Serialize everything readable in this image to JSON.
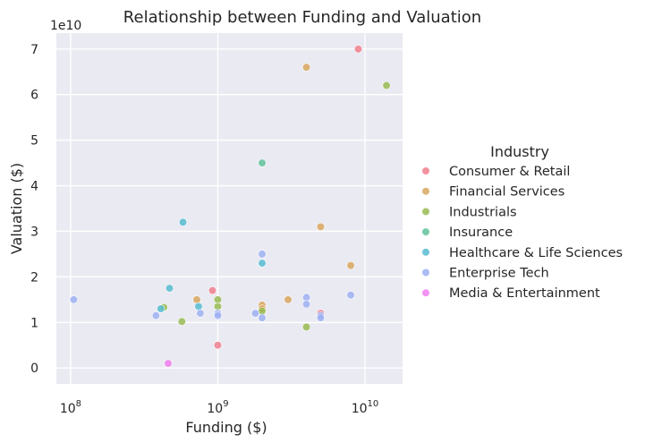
{
  "chart_data": {
    "type": "scatter",
    "title": "Relationship between Funding and Valuation",
    "xlabel": "Funding ($)",
    "ylabel": "Valuation ($)",
    "x_scale": "log",
    "xlim": [
      80000000,
      18000000000
    ],
    "ylim": [
      -3500000000,
      73500000000
    ],
    "y_offset_label": "1e10",
    "x_ticks": [
      {
        "value": 100000000,
        "base": "10",
        "exp": "8"
      },
      {
        "value": 1000000000,
        "base": "10",
        "exp": "9"
      },
      {
        "value": 10000000000,
        "base": "10",
        "exp": "10"
      }
    ],
    "y_ticks": [
      {
        "value": 0,
        "label": "0"
      },
      {
        "value": 10000000000,
        "label": "1"
      },
      {
        "value": 20000000000,
        "label": "2"
      },
      {
        "value": 30000000000,
        "label": "3"
      },
      {
        "value": 40000000000,
        "label": "4"
      },
      {
        "value": 50000000000,
        "label": "5"
      },
      {
        "value": 60000000000,
        "label": "6"
      },
      {
        "value": 70000000000,
        "label": "7"
      }
    ],
    "grid": true,
    "legend": {
      "title": "Industry",
      "position": "right"
    },
    "series": [
      {
        "name": "Consumer & Retail",
        "color": "#f07f8e",
        "points": [
          [
            9000000000,
            70000000000
          ],
          [
            920000000,
            17000000000
          ],
          [
            1000000000,
            5000000000
          ],
          [
            5000000000,
            12000000000
          ]
        ]
      },
      {
        "name": "Financial Services",
        "color": "#d9a760",
        "points": [
          [
            4000000000,
            66000000000
          ],
          [
            5000000000,
            31000000000
          ],
          [
            8000000000,
            22500000000
          ],
          [
            720000000,
            15000000000
          ],
          [
            3000000000,
            15000000000
          ],
          [
            2000000000,
            13800000000
          ],
          [
            2000000000,
            13000000000
          ]
        ]
      },
      {
        "name": "Industrials",
        "color": "#99bb54",
        "points": [
          [
            14000000000,
            62000000000
          ],
          [
            1000000000,
            15000000000
          ],
          [
            430000000,
            13300000000
          ],
          [
            1000000000,
            13500000000
          ],
          [
            2000000000,
            12500000000
          ],
          [
            570000000,
            10200000000
          ],
          [
            4000000000,
            9000000000
          ]
        ]
      },
      {
        "name": "Insurance",
        "color": "#5fc29a",
        "points": [
          [
            2000000000,
            45000000000
          ]
        ]
      },
      {
        "name": "Healthcare & Life Sciences",
        "color": "#57bcd0",
        "points": [
          [
            580000000,
            32000000000
          ],
          [
            2000000000,
            23000000000
          ],
          [
            470000000,
            17500000000
          ],
          [
            740000000,
            13500000000
          ],
          [
            410000000,
            13000000000
          ]
        ]
      },
      {
        "name": "Enterprise Tech",
        "color": "#9eb0f2",
        "points": [
          [
            2000000000,
            25000000000
          ],
          [
            105000000,
            15000000000
          ],
          [
            4000000000,
            15500000000
          ],
          [
            4000000000,
            14000000000
          ],
          [
            8000000000,
            16000000000
          ],
          [
            760000000,
            12000000000
          ],
          [
            1000000000,
            12000000000
          ],
          [
            1000000000,
            11500000000
          ],
          [
            1800000000,
            12000000000
          ],
          [
            2000000000,
            11000000000
          ],
          [
            5000000000,
            11500000000
          ],
          [
            5000000000,
            11000000000
          ],
          [
            380000000,
            11500000000
          ]
        ]
      },
      {
        "name": "Media & Entertainment",
        "color": "#f07ff0",
        "points": [
          [
            460000000,
            1000000000
          ]
        ]
      }
    ]
  }
}
